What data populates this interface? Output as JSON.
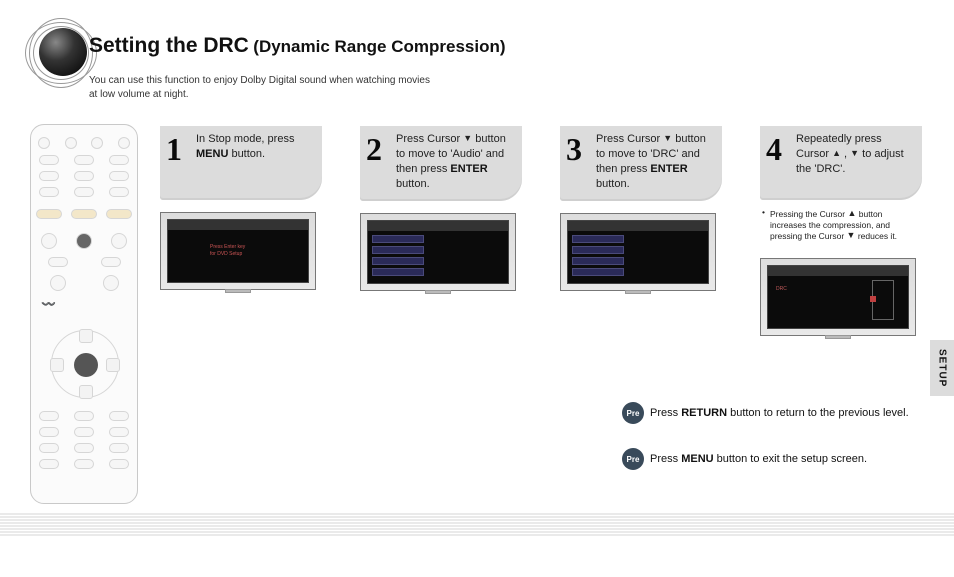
{
  "heading": {
    "main": "Setting the DRC",
    "sub": "(Dynamic Range Compression)"
  },
  "intro": "You can use this function to enjoy Dolby Digital sound when watching movies at low volume at night.",
  "steps": [
    {
      "num": "1",
      "body_html": "In Stop mode, press <b>MENU</b> button.",
      "tv": {
        "type": "text",
        "lines": [
          "Press Enter key",
          "for DVD Setup"
        ],
        "color": "#c05a5a"
      }
    },
    {
      "num": "2",
      "body_html": "Press Cursor <span class='tri'>▼</span> button to move to 'Audio' and then press <b>ENTER</b> button.",
      "tv": {
        "type": "menu",
        "items": [
          "SPEAKER SETUP",
          "DELAY TIME",
          "TEST TONE",
          "SOUND EDIT"
        ]
      }
    },
    {
      "num": "3",
      "body_html": "Press Cursor <span class='tri'>▼</span> button to move to 'DRC' and then press <b>ENTER</b> button.",
      "tv": {
        "type": "menu",
        "items": [
          "SPEAKER SETUP",
          "DELAY TIME",
          "TEST TONE",
          "SOUND EDIT"
        ]
      }
    },
    {
      "num": "4",
      "body_html": "Repeatedly press Cursor <span class='tri'>▲</span> , <span class='tri'>▼</span>  to adjust the 'DRC'.",
      "note_html": "Pressing the Cursor <span class='tri'>▲</span> button increases the compression, and pressing the Cursor <span class='tri'>▼</span> reduces it.",
      "tv": {
        "type": "gauge",
        "label": "DRC",
        "value": 0.55
      }
    }
  ],
  "notes": {
    "return_html": "Press <b>RETURN</b> button to return to the previous level.",
    "menu_html": "Press <b>MENU</b> button to exit the setup screen.",
    "dot_label": "Pre"
  },
  "side_tab": "SETUP",
  "colors": {
    "card_bg": "#dcdcdc",
    "tv_menu_row": "#2a2a58",
    "gauge_marker": "#c04040",
    "note_dot": "#394a5a"
  }
}
